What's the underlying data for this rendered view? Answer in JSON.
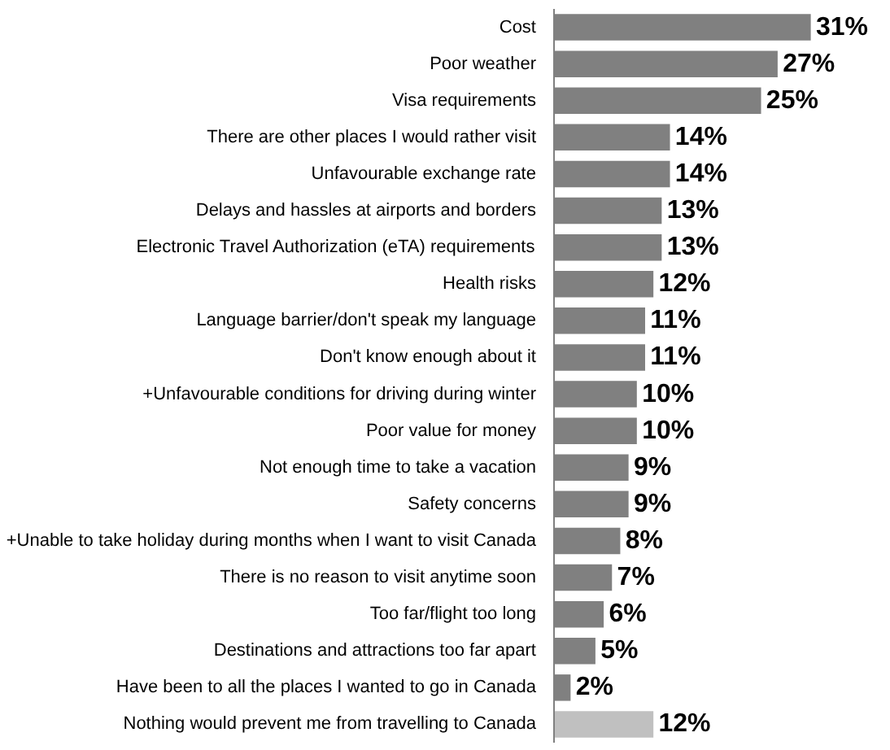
{
  "chart_data": {
    "type": "bar",
    "orientation": "horizontal",
    "categories": [
      "Cost",
      "Poor weather",
      "Visa requirements",
      "There are other places I would rather visit",
      "Unfavourable exchange rate",
      "Delays and hassles at airports and borders",
      "Electronic Travel Authorization (eTA) requirements",
      "Health risks",
      "Language barrier/don't speak my language",
      "Don't know enough about it",
      "+Unfavourable conditions for driving during winter",
      "Poor value for money",
      "Not enough time to take a vacation",
      "Safety concerns",
      "+Unable to take holiday during months when I want to visit Canada",
      "There is no reason to visit anytime soon",
      "Too far/flight too long",
      "Destinations and attractions too far apart",
      "Have been to all the places I wanted to go in Canada",
      "Nothing would prevent me from travelling to Canada"
    ],
    "values": [
      31,
      27,
      25,
      14,
      14,
      13,
      13,
      12,
      11,
      11,
      10,
      10,
      9,
      9,
      8,
      7,
      6,
      5,
      2,
      12
    ],
    "value_labels": [
      "31%",
      "27%",
      "25%",
      "14%",
      "14%",
      "13%",
      "13%",
      "12%",
      "11%",
      "11%",
      "10%",
      "10%",
      "9%",
      "9%",
      "8%",
      "7%",
      "6%",
      "5%",
      "2%",
      "12%"
    ],
    "colors": [
      "#808080",
      "#808080",
      "#808080",
      "#808080",
      "#808080",
      "#808080",
      "#808080",
      "#808080",
      "#808080",
      "#808080",
      "#808080",
      "#808080",
      "#808080",
      "#808080",
      "#808080",
      "#808080",
      "#808080",
      "#808080",
      "#808080",
      "#c0c0c0"
    ],
    "grid": false
  }
}
